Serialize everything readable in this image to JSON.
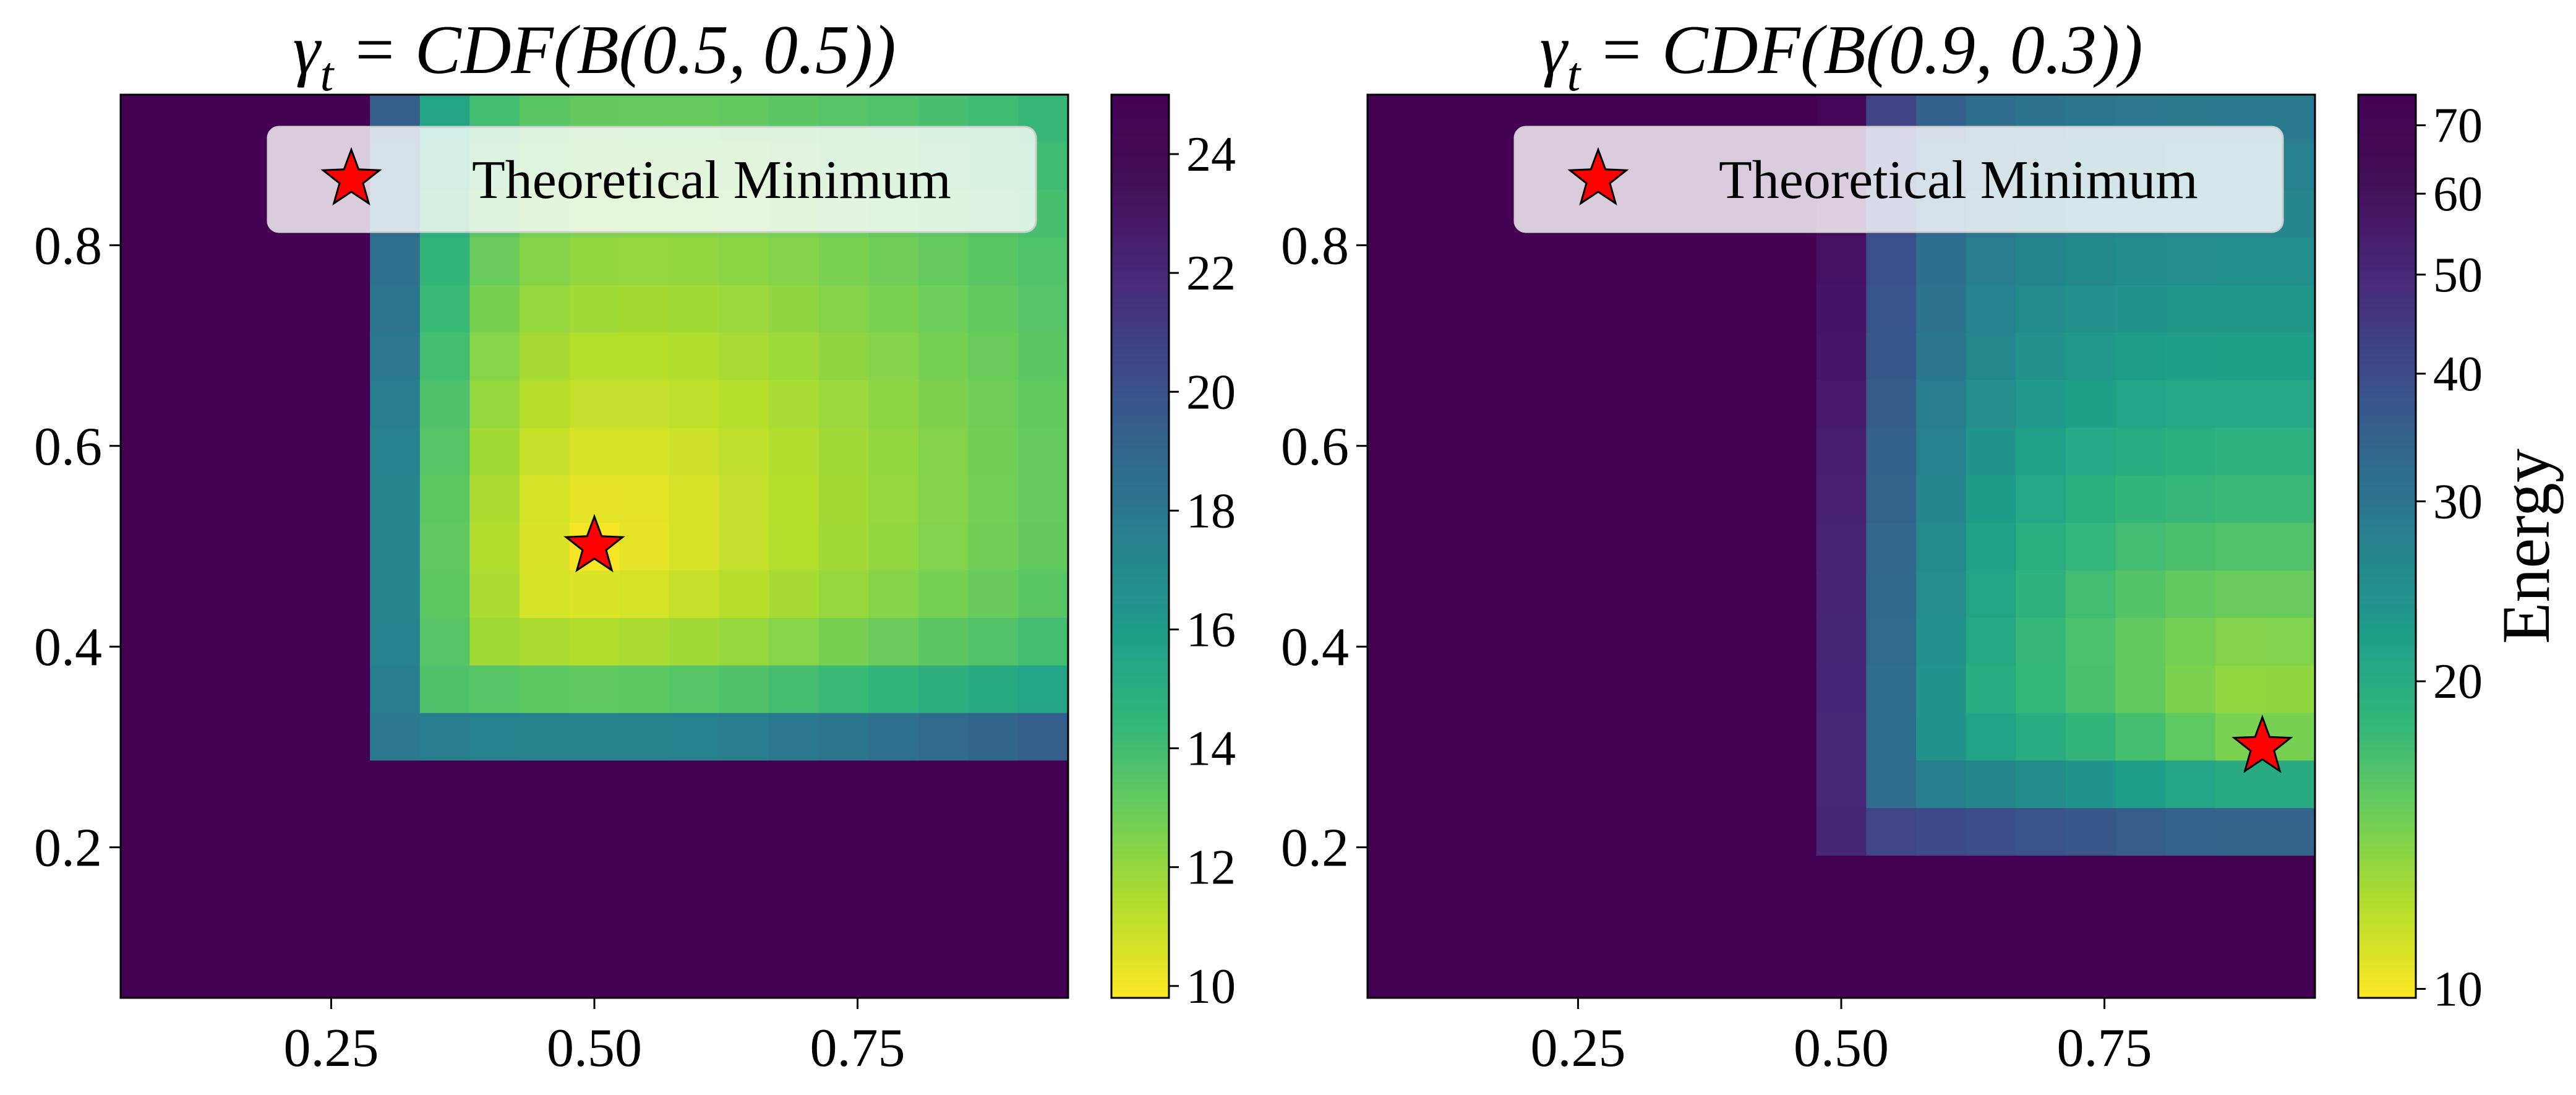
{
  "chart_data": [
    {
      "type": "heatmap",
      "title": "γt = CDF(B(0.5, 0.5))",
      "title_parts": {
        "var": "γ",
        "sub": "t",
        "rest": " = CDF(B(0.5, 0.5))"
      },
      "xlim": [
        0.05,
        0.95
      ],
      "ylim": [
        0.05,
        0.95
      ],
      "xticks": [
        0.25,
        0.5,
        0.75
      ],
      "xtick_labels": [
        "0.25",
        "0.50",
        "0.75"
      ],
      "yticks": [
        0.2,
        0.4,
        0.6,
        0.8
      ],
      "ytick_labels": [
        "0.2",
        "0.4",
        "0.6",
        "0.8"
      ],
      "grid": {
        "xmin": 0.05,
        "xmax": 0.95,
        "ymin": 0.05,
        "ymax": 0.95,
        "nx": 19,
        "ny": 19
      },
      "colormap": "viridis_r",
      "colorbar": {
        "scale": "linear",
        "range": [
          9.8,
          25
        ],
        "ticks": [
          10,
          12,
          14,
          16,
          18,
          20,
          22,
          24
        ],
        "tick_labels": [
          "10",
          "12",
          "14",
          "16",
          "18",
          "20",
          "22",
          "24"
        ],
        "label": ""
      },
      "valid_region": {
        "x_min": 0.3,
        "y_min": 0.3
      },
      "saturation_value": 25,
      "minimum": {
        "x": 0.5,
        "y": 0.5,
        "value": 9.8
      },
      "legend": {
        "label": "Theoretical Minimum",
        "loc": "upper right"
      }
    },
    {
      "type": "heatmap",
      "title": "γt = CDF(B(0.9, 0.3))",
      "title_parts": {
        "var": "γ",
        "sub": "t",
        "rest": " = CDF(B(0.9, 0.3))"
      },
      "xlim": [
        0.05,
        0.95
      ],
      "ylim": [
        0.05,
        0.95
      ],
      "xticks": [
        0.25,
        0.5,
        0.75
      ],
      "xtick_labels": [
        "0.25",
        "0.50",
        "0.75"
      ],
      "yticks": [
        0.2,
        0.4,
        0.6,
        0.8
      ],
      "ytick_labels": [
        "0.2",
        "0.4",
        "0.6",
        "0.8"
      ],
      "grid": {
        "xmin": 0.05,
        "xmax": 0.95,
        "ymin": 0.05,
        "ymax": 0.95,
        "nx": 19,
        "ny": 19
      },
      "colormap": "viridis_r",
      "colorbar": {
        "scale": "log",
        "range": [
          9.8,
          75
        ],
        "ticks": [
          10,
          20,
          30,
          40,
          50,
          60,
          70
        ],
        "tick_labels": [
          "10",
          "20",
          "30",
          "40",
          "50",
          "60",
          "70"
        ],
        "label": "Energy"
      },
      "valid_region": {
        "x_min": 0.5,
        "y_min": 0.2
      },
      "saturation_value": 75,
      "minimum": {
        "x": 0.9,
        "y": 0.3,
        "value": 10
      },
      "legend": {
        "label": "Theoretical Minimum",
        "loc": "upper right"
      }
    }
  ]
}
